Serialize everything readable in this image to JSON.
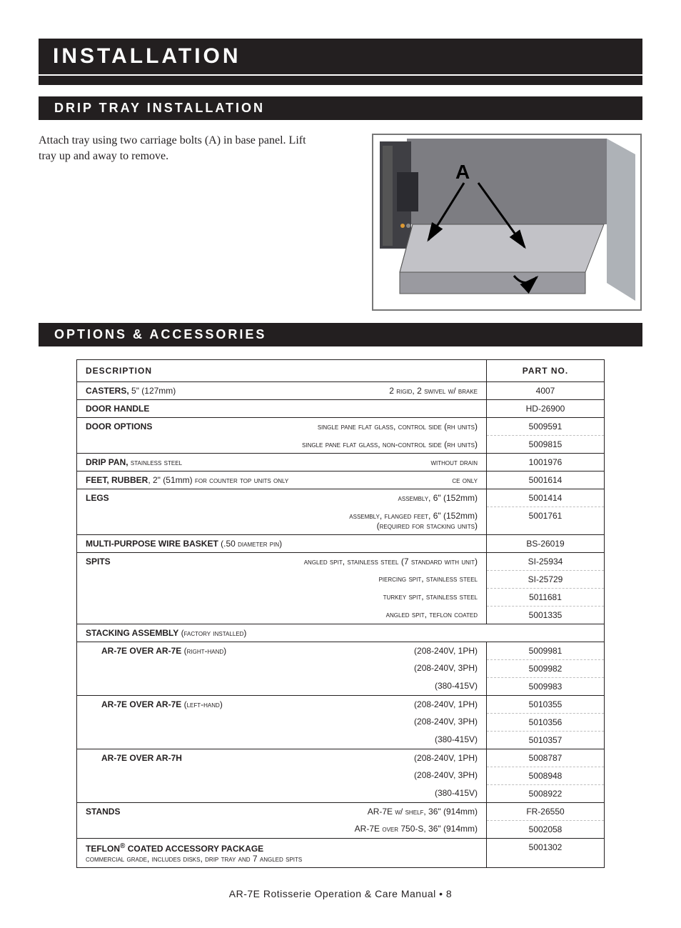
{
  "title": "INSTALLATION",
  "sections": {
    "drip": {
      "heading": "DRIP TRAY INSTALLATION",
      "text": "Attach tray using two carriage bolts (A) in base panel. Lift tray up and away to remove.",
      "callout": "A",
      "diagram": {
        "frame_color": "#9a9a9a",
        "panel_color": "#6f6f74",
        "tray_color": "#b8b8bd",
        "label_color": "#000000"
      }
    },
    "options": {
      "heading": "OPTIONS & ACCESSORIES",
      "columns": {
        "desc": "DESCRIPTION",
        "part": "PART NO."
      },
      "rows": [
        {
          "t": "solid",
          "left": "<b>CASTERS,</b> 5\" (127mm)",
          "right": "<span class='sc'>2 rigid, 2 swivel w/ brake</span>",
          "pn": "4007"
        },
        {
          "t": "solid",
          "left": "<b>DOOR HANDLE</b>",
          "right": "",
          "pn": "HD-26900"
        },
        {
          "t": "solid",
          "left": "<b>DOOR OPTIONS</b>",
          "right": "<span class='sc'>single pane flat glass, control side (rh units)</span>",
          "pn": "5009591"
        },
        {
          "t": "dash",
          "left": "",
          "right": "<span class='sc'>single pane flat glass, non-control side (rh units)</span>",
          "pn": "5009815"
        },
        {
          "t": "solid",
          "left": "<b>DRIP PAN,</b> <span class='sc'>stainless steel</span>",
          "right": "<span class='sc'>without drain</span>",
          "pn": "1001976"
        },
        {
          "t": "solid",
          "left": "<b>FEET, RUBBER</b>, 2\" (51mm) <span class='sc'>for counter top units only</span>",
          "right": "<span class='sc'>ce only</span>",
          "pn": "5001614"
        },
        {
          "t": "solid",
          "left": "<b>LEGS</b>",
          "right": "<span class='sc'>assembly,</span> 6\" (152mm)",
          "pn": "5001414"
        },
        {
          "t": "dash",
          "left": "",
          "right": "<span class='sc'>assembly, flanged feet,</span> 6\" (152mm)<br><span class='sc'>(required for stacking units)</span>",
          "pn": "5001761"
        },
        {
          "t": "solid",
          "left": "<b>MULTI-PURPOSE WIRE BASKET</b> (.50 <span class='sc'>diameter pin</span>)",
          "right": "",
          "pn": "BS-26019"
        },
        {
          "t": "solid",
          "left": "<b>SPITS</b>",
          "right": "<span class='sc'>angled spit, stainless steel (7 standard with unit)</span>",
          "pn": "SI-25934"
        },
        {
          "t": "dash",
          "left": "",
          "right": "<span class='sc'>piercing spit, stainless steel</span>",
          "pn": "SI-25729"
        },
        {
          "t": "dash",
          "left": "",
          "right": "<span class='sc'>turkey spit, stainless steel</span>",
          "pn": "5011681"
        },
        {
          "t": "dash",
          "left": "",
          "right": "<span class='sc'>angled spit, teflon coated</span>",
          "pn": "5001335"
        },
        {
          "t": "full",
          "left": "<b>STACKING ASSEMBLY</b> <span class='sc'>(factory installed)</span>",
          "right": "",
          "pn": ""
        },
        {
          "t": "solid",
          "left": "<span class='sub'><b>AR-7E OVER AR-7E</b> <span class='sc'>(right-hand)</span></span>",
          "right": "(208-240V, 1PH)",
          "pn": "5009981"
        },
        {
          "t": "dash",
          "left": "",
          "right": "(208-240V, 3PH)",
          "pn": "5009982"
        },
        {
          "t": "dash",
          "left": "",
          "right": "(380-415V)",
          "pn": "5009983"
        },
        {
          "t": "solid",
          "left": "<span class='sub'><b>AR-7E OVER AR-7E</b> <span class='sc'>(left-hand)</span></span>",
          "right": "(208-240V, 1PH)",
          "pn": "5010355"
        },
        {
          "t": "dash",
          "left": "",
          "right": "(208-240V, 3PH)",
          "pn": "5010356"
        },
        {
          "t": "dash",
          "left": "",
          "right": "(380-415V)",
          "pn": "5010357"
        },
        {
          "t": "solid",
          "left": "<span class='sub'><b>AR-7E OVER AR-7H</b></span>",
          "right": "(208-240V, 1PH)",
          "pn": "5008787"
        },
        {
          "t": "dash",
          "left": "",
          "right": "(208-240V, 3PH)",
          "pn": "5008948"
        },
        {
          "t": "dash",
          "left": "",
          "right": "(380-415V)",
          "pn": "5008922"
        },
        {
          "t": "solid",
          "left": "<b>STANDS</b>",
          "right": "AR-7E <span class='sc'>w/ shelf,</span> 36\" (914mm)",
          "pn": "FR-26550"
        },
        {
          "t": "dash",
          "left": "",
          "right": "AR-7E <span class='sc'>over</span> 750-S, 36\" (914mm)",
          "pn": "5002058"
        },
        {
          "t": "solid",
          "left": "<b>TEFLON<sup>®</sup> COATED ACCESSORY PACKAGE</b><br><span style='display:block;text-align:right'><span class='sc'>commercial grade, includes disks, drip tray and 7 angled spits</span></span>",
          "right": "",
          "pn": "5001302"
        }
      ]
    }
  },
  "footer": "AR-7E Rotisserie Operation & Care Manual • 8"
}
